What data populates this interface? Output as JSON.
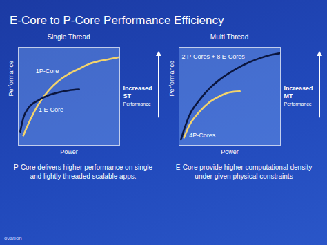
{
  "title": "E-Core to P-Core Performance Efficiency",
  "footer": "ovation",
  "chart_data": [
    {
      "type": "line",
      "title": "Single Thread",
      "x_label": "Power",
      "y_label": "Performance",
      "x": [
        2,
        5,
        10,
        20,
        30,
        40,
        50,
        60,
        70,
        80,
        90,
        100
      ],
      "series": [
        {
          "name": "1P-Core",
          "color": "#f3d36b",
          "values": [
            null,
            10,
            22,
            42,
            56,
            66,
            73,
            78,
            83,
            86,
            88,
            90
          ]
        },
        {
          "name": "1 E-Core",
          "color": "#0b163f",
          "values": [
            14,
            28,
            38,
            46,
            51,
            54,
            56,
            57,
            null,
            null,
            null,
            null
          ]
        }
      ],
      "xlim": [
        0,
        100
      ],
      "ylim": [
        0,
        100
      ],
      "xticks": [],
      "yticks": [],
      "tick_labels": false,
      "grid": false,
      "annotation": [
        "Increased",
        "ST",
        "Performance"
      ],
      "caption": "P-Core delivers higher performance on single and lightly threaded scalable apps."
    },
    {
      "type": "line",
      "title": "Multi Thread",
      "x_label": "Power",
      "y_label": "Performance",
      "x": [
        2,
        5,
        10,
        20,
        30,
        40,
        50,
        60,
        70,
        80,
        90,
        100
      ],
      "series": [
        {
          "name": "2 P-Cores + 8 E-Cores",
          "color": "#0b163f",
          "values": [
            6,
            16,
            30,
            46,
            58,
            67,
            74,
            80,
            85,
            89,
            92,
            94
          ]
        },
        {
          "name": "4P-Cores",
          "color": "#f3d36b",
          "values": [
            null,
            8,
            20,
            34,
            44,
            50,
            54,
            55,
            null,
            null,
            null,
            null
          ]
        }
      ],
      "xlim": [
        0,
        100
      ],
      "ylim": [
        0,
        100
      ],
      "xticks": [],
      "yticks": [],
      "tick_labels": false,
      "grid": false,
      "annotation": [
        "Increased",
        "MT",
        "Performance"
      ],
      "caption": "E-Core provide higher computational density under given physical constraints"
    }
  ]
}
